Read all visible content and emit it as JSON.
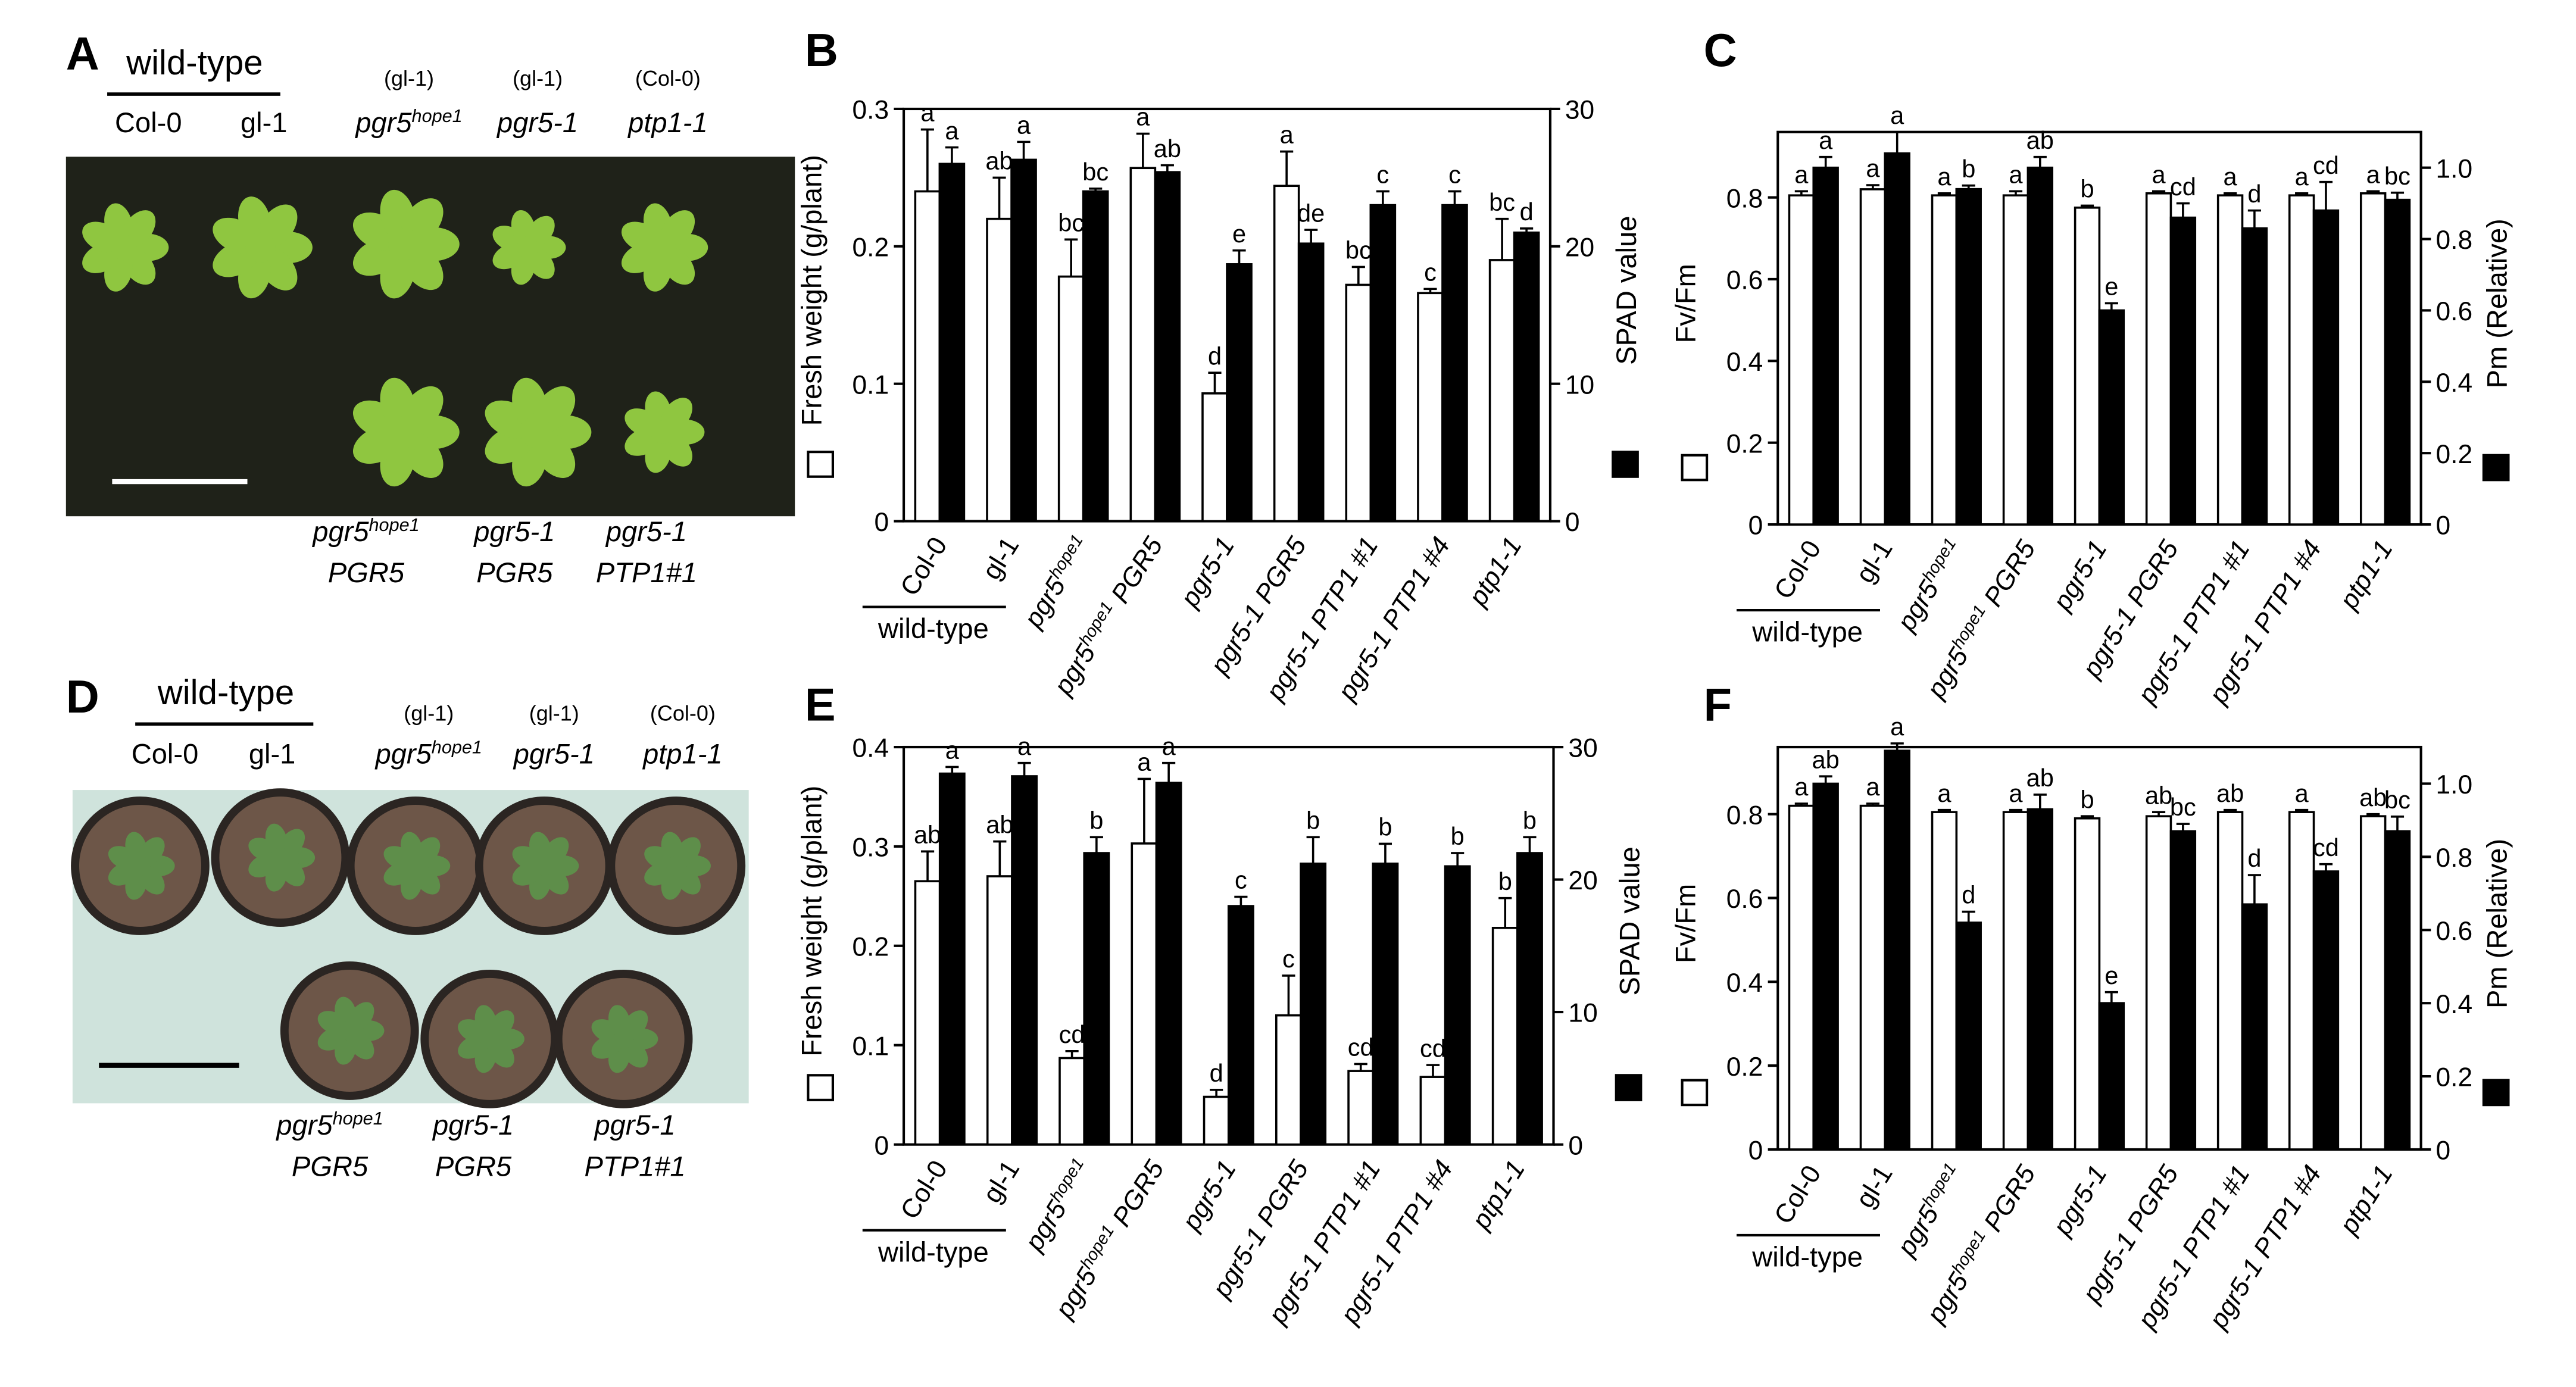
{
  "photo_panels": [
    {
      "panel": "A",
      "group_label": "wild-type",
      "top_row": [
        {
          "name": "Col-0"
        },
        {
          "name": "gl-1"
        },
        {
          "background": "(gl-1)",
          "name": "pgr5hope1"
        },
        {
          "background": "(gl-1)",
          "name": "pgr5-1"
        },
        {
          "background": "(Col-0)",
          "name": "ptp1-1"
        }
      ],
      "bottom_row": [
        [
          "pgr5hope1",
          "PGR5"
        ],
        [
          "pgr5-1",
          "PGR5"
        ],
        [
          "pgr5-1",
          "PTP1#1"
        ]
      ]
    },
    {
      "panel": "D",
      "group_label": "wild-type",
      "top_row": [
        {
          "name": "Col-0"
        },
        {
          "name": "gl-1"
        },
        {
          "background": "(gl-1)",
          "name": "pgr5hope1"
        },
        {
          "background": "(gl-1)",
          "name": "pgr5-1"
        },
        {
          "background": "(Col-0)",
          "name": "ptp1-1"
        }
      ],
      "bottom_row": [
        [
          "pgr5hope1",
          "PGR5"
        ],
        [
          "pgr5-1",
          "PGR5"
        ],
        [
          "pgr5-1",
          "PTP1#1"
        ]
      ]
    }
  ],
  "chart_data": [
    {
      "type": "bar",
      "panel": "B",
      "categories": [
        "Col-0",
        "gl-1",
        "pgr5hope1",
        "pgr5hope1 PGR5",
        "pgr5-1",
        "pgr5-1 PGR5",
        "pgr5-1 PTP1 #1",
        "pgr5-1 PTP1 #4",
        "ptp1-1"
      ],
      "group_label": "wild-type",
      "ylabel": "Fresh weight (g/plant)",
      "y2label": "SPAD value",
      "ylim": [
        0,
        0.3
      ],
      "yticks": [
        0,
        0.1,
        0.2,
        0.3
      ],
      "y2lim": [
        0,
        30
      ],
      "y2ticks": [
        0,
        10,
        20,
        30
      ],
      "series": [
        {
          "color": "#ffffff",
          "values": [
            0.24,
            0.22,
            0.178,
            0.257,
            0.093,
            0.244,
            0.172,
            0.166,
            0.19
          ],
          "errors": [
            0.045,
            0.03,
            0.027,
            0.025,
            0.015,
            0.025,
            0.013,
            0.003,
            0.03
          ],
          "letters": [
            "a",
            "ab",
            "bc",
            "a",
            "d",
            "a",
            "bc",
            "c",
            "bc"
          ]
        },
        {
          "color": "#000000",
          "axis": "y2",
          "values": [
            26,
            26.3,
            24,
            25.4,
            18.7,
            20.2,
            23,
            23,
            21
          ],
          "errors": [
            1.2,
            1.3,
            0.2,
            0.5,
            1,
            1,
            1,
            1,
            0.3
          ],
          "letters": [
            "a",
            "a",
            "bc",
            "ab",
            "e",
            "de",
            "c",
            "c",
            "d"
          ]
        }
      ]
    },
    {
      "type": "bar",
      "panel": "C",
      "categories": [
        "Col-0",
        "gl-1",
        "pgr5hope1",
        "pgr5hope1 PGR5",
        "pgr5-1",
        "pgr5-1 PGR5",
        "pgr5-1 PTP1 #1",
        "pgr5-1 PTP1 #4",
        "ptp1-1"
      ],
      "group_label": "wild-type",
      "ylabel": "Fv/Fm",
      "y2label": "Pm (Relative)",
      "ylim": [
        0,
        0.96
      ],
      "yticks": [
        0,
        0.2,
        0.4,
        0.6,
        0.8
      ],
      "y2lim": [
        0,
        1.1
      ],
      "y2ticks": [
        0,
        0.2,
        0.4,
        0.6,
        0.8,
        {
          "value": 1,
          "label": "1.0"
        }
      ],
      "series": [
        {
          "color": "#ffffff",
          "values": [
            0.805,
            0.82,
            0.805,
            0.805,
            0.775,
            0.81,
            0.805,
            0.805,
            0.81
          ],
          "errors": [
            0.01,
            0.01,
            0.005,
            0.01,
            0.005,
            0.005,
            0.005,
            0.005,
            0.005
          ],
          "letters": [
            "a",
            "a",
            "a",
            "a",
            "b",
            "a",
            "a",
            "a",
            "a"
          ]
        },
        {
          "color": "#000000",
          "axis": "y2",
          "values": [
            1.0,
            1.04,
            0.94,
            1.0,
            0.6,
            0.86,
            0.83,
            0.88,
            0.91
          ],
          "errors": [
            0.03,
            0.06,
            0.01,
            0.03,
            0.02,
            0.04,
            0.05,
            0.08,
            0.02
          ],
          "letters": [
            "a",
            "a",
            "b",
            "ab",
            "e",
            "cd",
            "d",
            "cd",
            "bc"
          ]
        }
      ]
    },
    {
      "type": "bar",
      "panel": "E",
      "categories": [
        "Col-0",
        "gl-1",
        "pgr5hope1",
        "pgr5hope1 PGR5",
        "pgr5-1",
        "pgr5-1 PGR5",
        "pgr5-1 PTP1 #1",
        "pgr5-1 PTP1 #4",
        "ptp1-1"
      ],
      "group_label": "wild-type",
      "ylabel": "Fresh weight (g/plant)",
      "y2label": "SPAD value",
      "ylim": [
        0,
        0.4
      ],
      "yticks": [
        0,
        0.1,
        0.2,
        0.3,
        0.4
      ],
      "y2lim": [
        0,
        30
      ],
      "y2ticks": [
        0,
        10,
        20,
        30
      ],
      "series": [
        {
          "color": "#ffffff",
          "values": [
            0.265,
            0.27,
            0.087,
            0.303,
            0.048,
            0.13,
            0.074,
            0.068,
            0.218
          ],
          "errors": [
            0.03,
            0.035,
            0.007,
            0.065,
            0.007,
            0.04,
            0.007,
            0.012,
            0.03
          ],
          "letters": [
            "ab",
            "ab",
            "cd",
            "a",
            "d",
            "c",
            "cd",
            "cd",
            "b"
          ]
        },
        {
          "color": "#000000",
          "axis": "y2",
          "values": [
            28,
            27.8,
            22,
            27.3,
            18,
            21.2,
            21.2,
            21,
            22
          ],
          "errors": [
            0.5,
            1,
            1.2,
            1.5,
            0.7,
            2,
            1.5,
            1,
            1.2
          ],
          "letters": [
            "a",
            "a",
            "b",
            "a",
            "c",
            "b",
            "b",
            "b",
            "b"
          ]
        }
      ]
    },
    {
      "type": "bar",
      "panel": "F",
      "categories": [
        "Col-0",
        "gl-1",
        "pgr5hope1",
        "pgr5hope1 PGR5",
        "pgr5-1",
        "pgr5-1 PGR5",
        "pgr5-1 PTP1 #1",
        "pgr5-1 PTP1 #4",
        "ptp1-1"
      ],
      "group_label": "wild-type",
      "ylabel": "Fv/Fm",
      "y2label": "Pm (Relative)",
      "ylim": [
        0,
        0.96
      ],
      "yticks": [
        0,
        0.2,
        0.4,
        0.6,
        0.8
      ],
      "y2lim": [
        0,
        1.1
      ],
      "y2ticks": [
        0,
        0.2,
        0.4,
        0.6,
        0.8,
        {
          "value": 1,
          "label": "1.0"
        }
      ],
      "series": [
        {
          "color": "#ffffff",
          "values": [
            0.82,
            0.82,
            0.805,
            0.805,
            0.79,
            0.795,
            0.805,
            0.805,
            0.795
          ],
          "errors": [
            0.005,
            0.005,
            0.005,
            0.005,
            0.005,
            0.01,
            0.005,
            0.005,
            0.005
          ],
          "letters": [
            "a",
            "a",
            "a",
            "a",
            "b",
            "ab",
            "ab",
            "a",
            "ab"
          ]
        },
        {
          "color": "#000000",
          "axis": "y2",
          "values": [
            1.0,
            1.09,
            0.62,
            0.93,
            0.4,
            0.87,
            0.67,
            0.76,
            0.87
          ],
          "errors": [
            0.02,
            0.02,
            0.03,
            0.04,
            0.03,
            0.02,
            0.08,
            0.02,
            0.04
          ],
          "letters": [
            "ab",
            "a",
            "d",
            "ab",
            "e",
            "bc",
            "d",
            "cd",
            "bc"
          ]
        }
      ]
    }
  ]
}
